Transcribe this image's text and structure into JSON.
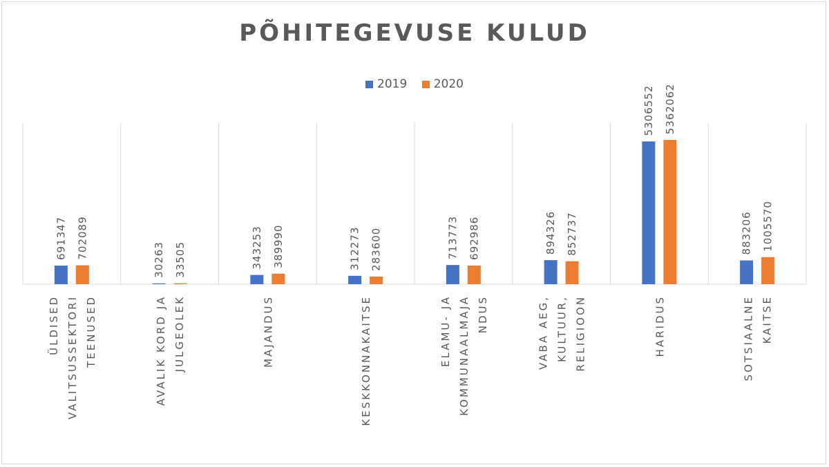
{
  "chart_data": {
    "type": "bar",
    "title": "PÕHITEGEVUSE KULUD",
    "categories": [
      "ÜLDISED VALITSUSSEKTORI TEENUSED",
      "AVALIK KORD JA JULGEOLEK",
      "MAJANDUS",
      "KESKKONNAKAITSE",
      "ELAMU- JA KOMMUNAALMAJANDUS",
      "VABA AEG, KULTUUR, RELIGIOON",
      "HARIDUS",
      "SOTSIAALNE KAITSE"
    ],
    "category_label_lines": [
      [
        "ÜLDISED",
        "VALITSUSSEKTORI",
        "TEENUSED"
      ],
      [
        "AVALIK KORD JA",
        "JULGEOLEK"
      ],
      [
        "MAJANDUS"
      ],
      [
        "KESKKONNAKAITSE"
      ],
      [
        "ELAMU- JA",
        "KOMMUNAALMAJA",
        "NDUS"
      ],
      [
        "VABA AEG,",
        "KULTUUR,",
        "RELIGIOON"
      ],
      [
        "HARIDUS"
      ],
      [
        "SOTSIAALNE",
        "KAITSE"
      ]
    ],
    "series": [
      {
        "name": "2019",
        "color": "#4472c4",
        "values": [
          691347,
          30263,
          343253,
          312273,
          713773,
          894326,
          5306552,
          883206
        ]
      },
      {
        "name": "2020",
        "color": "#ed7d31",
        "values": [
          702089,
          33505,
          389990,
          283600,
          692986,
          852737,
          5362062,
          1005570
        ]
      }
    ],
    "ylim": [
      0,
      6000000
    ],
    "xlabel": "",
    "ylabel": "",
    "legend_position": "top",
    "grid": "vertical category separators",
    "data_labels": "rotated above bars"
  }
}
